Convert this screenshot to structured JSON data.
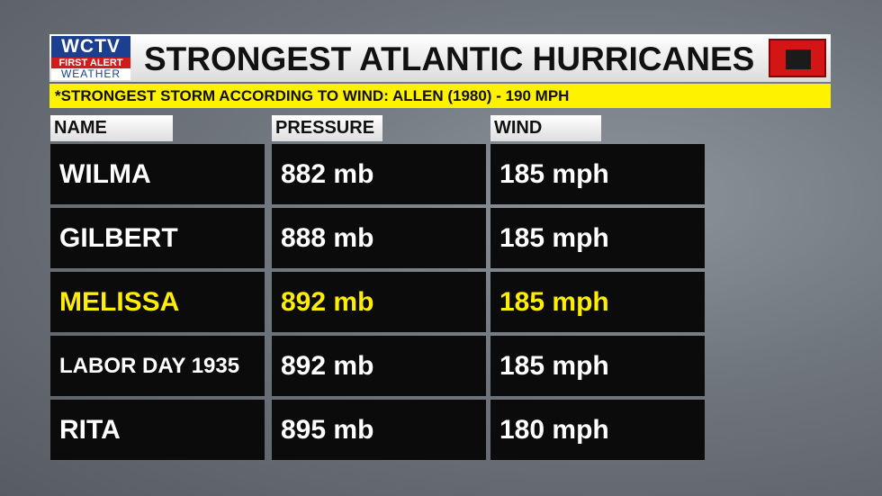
{
  "logo": {
    "station": "WCTV",
    "tag": "FIRST ALERT",
    "label": "WEATHER"
  },
  "header": {
    "title": "STRONGEST ATLANTIC HURRICANES",
    "subtitle": "*STRONGEST STORM ACCORDING TO WIND: ALLEN (1980) - 190 MPH"
  },
  "table": {
    "headers": [
      "NAME",
      "PRESSURE",
      "WIND"
    ],
    "rows": [
      [
        "WILMA",
        "882 mb",
        "185 mph"
      ],
      [
        "GILBERT",
        "888 mb",
        "185 mph"
      ],
      [
        "MELISSA",
        "892 mb",
        "185 mph"
      ],
      [
        "LABOR DAY 1935",
        "892 mb",
        "185 mph"
      ],
      [
        "RITA",
        "895 mb",
        "180 mph"
      ]
    ]
  }
}
